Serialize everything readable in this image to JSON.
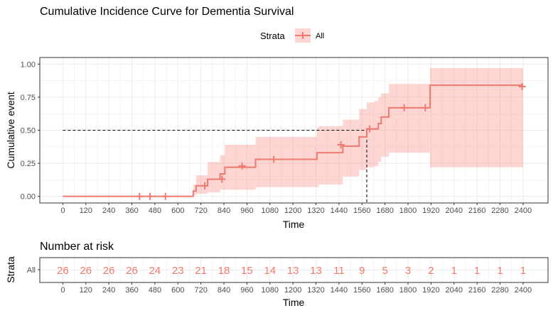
{
  "colors": {
    "curve": "#f07a6e",
    "band": "#f8766d",
    "risk_text": "#f07a6e",
    "grid": "#ebebeb",
    "panel_border": "#333333"
  },
  "chart_data": [
    {
      "type": "line",
      "title": "Cumulative Incidence Curve for Dementia Survival",
      "xlabel": "Time",
      "ylabel": "Cumulative event",
      "xlim": [
        -120,
        2530
      ],
      "ylim": [
        -0.05,
        1.05
      ],
      "xticks": [
        0,
        120,
        240,
        360,
        480,
        600,
        720,
        840,
        960,
        1080,
        1200,
        1320,
        1440,
        1560,
        1680,
        1800,
        1920,
        2040,
        2160,
        2280,
        2400
      ],
      "yticks": [
        0,
        0.25,
        0.5,
        0.75,
        1
      ],
      "ytick_labels": [
        "0.00",
        "0.25",
        "0.50",
        "0.75",
        "1.00"
      ],
      "grid": true,
      "legend": {
        "title": "Strata",
        "position": "top",
        "entries": [
          "All"
        ]
      },
      "series": [
        {
          "name": "All",
          "step_x": [
            0,
            680,
            695,
            725,
            755,
            820,
            845,
            1005,
            1325,
            1335,
            1460,
            1545,
            1585,
            1625,
            1645,
            1660,
            1700,
            1915,
            2400
          ],
          "step_y": [
            0,
            0.04,
            0.08,
            0.08,
            0.13,
            0.17,
            0.22,
            0.28,
            0.33,
            0.33,
            0.38,
            0.45,
            0.51,
            0.51,
            0.55,
            0.6,
            0.67,
            0.84,
            0.84
          ],
          "ci_upper": [
            0,
            0.09,
            0.16,
            0.16,
            0.26,
            0.31,
            0.39,
            0.45,
            0.52,
            0.53,
            0.58,
            0.66,
            0.71,
            0.72,
            0.75,
            0.78,
            0.85,
            0.97,
            0.97
          ],
          "ci_lower": [
            0,
            0.01,
            0.02,
            0.02,
            0.03,
            0.05,
            0.05,
            0.07,
            0.07,
            0.09,
            0.15,
            0.2,
            0.22,
            0.23,
            0.26,
            0.3,
            0.33,
            0.22,
            0.22
          ],
          "censor_times": [
            400,
            455,
            535,
            740,
            830,
            935,
            1100,
            1450,
            1600,
            1780,
            1890,
            2395
          ],
          "censor_values": [
            0,
            0,
            0,
            0.08,
            0.13,
            0.23,
            0.28,
            0.39,
            0.51,
            0.67,
            0.67,
            0.83
          ]
        }
      ],
      "median_line": {
        "x": 1585,
        "y": 0.5
      }
    },
    {
      "type": "table",
      "title": "Number at risk",
      "xlabel": "Time",
      "ylabel": "Strata",
      "xlim": [
        -120,
        2530
      ],
      "xticks": [
        0,
        120,
        240,
        360,
        480,
        600,
        720,
        840,
        960,
        1080,
        1200,
        1320,
        1440,
        1560,
        1680,
        1800,
        1920,
        2040,
        2160,
        2280,
        2400
      ],
      "row_label": "All",
      "values": [
        26,
        26,
        26,
        26,
        24,
        23,
        21,
        18,
        15,
        14,
        13,
        13,
        11,
        9,
        5,
        3,
        2,
        1,
        1,
        1,
        1
      ]
    }
  ]
}
